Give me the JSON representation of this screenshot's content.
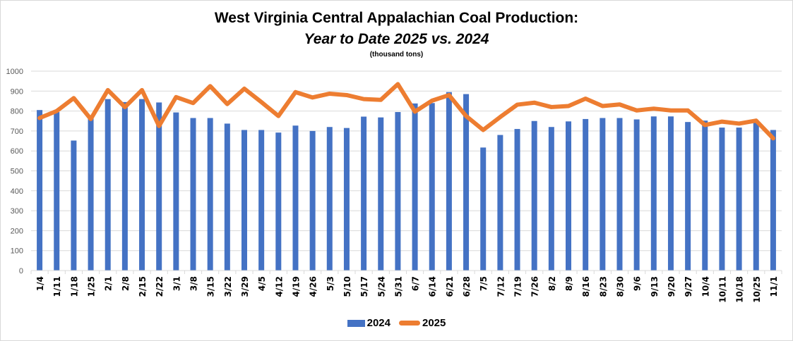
{
  "chart_data": {
    "type": "bar",
    "title": "West Virginia Central Appalachian Coal Production:",
    "subtitle": "Year to Date 2025 vs. 2024",
    "unit_note": "(thousand tons)",
    "xlabel": "",
    "ylabel": "",
    "ylim": [
      0,
      1000
    ],
    "yticks": [
      0,
      100,
      200,
      300,
      400,
      500,
      600,
      700,
      800,
      900,
      1000
    ],
    "grid": true,
    "legend_position": "bottom",
    "categories": [
      "1/4",
      "1/11",
      "1/18",
      "1/25",
      "2/1",
      "2/8",
      "2/15",
      "2/22",
      "3/1",
      "3/8",
      "3/15",
      "3/22",
      "3/29",
      "4/5",
      "4/12",
      "4/19",
      "4/26",
      "5/3",
      "5/10",
      "5/17",
      "5/24",
      "5/31",
      "6/7",
      "6/14",
      "6/21",
      "6/28",
      "7/5",
      "7/12",
      "7/19",
      "7/26",
      "8/2",
      "8/9",
      "8/16",
      "8/23",
      "8/30",
      "9/6",
      "9/13",
      "9/20",
      "9/27",
      "10/4",
      "10/11",
      "10/18",
      "10/25",
      "11/1"
    ],
    "series": [
      {
        "name": "2024",
        "type": "bar",
        "color": "#4472c4",
        "values": [
          805,
          795,
          652,
          765,
          860,
          845,
          860,
          843,
          793,
          765,
          765,
          737,
          705,
          705,
          692,
          727,
          700,
          720,
          715,
          772,
          768,
          795,
          838,
          840,
          895,
          885,
          617,
          680,
          710,
          750,
          720,
          748,
          760,
          765,
          765,
          758,
          773,
          773,
          745,
          752,
          717,
          717,
          742,
          705
        ]
      },
      {
        "name": "2025",
        "type": "line",
        "color": "#ed7d31",
        "values": [
          765,
          800,
          865,
          760,
          905,
          820,
          905,
          725,
          870,
          840,
          925,
          835,
          912,
          845,
          775,
          895,
          868,
          887,
          880,
          860,
          856,
          935,
          797,
          852,
          880,
          775,
          705,
          770,
          832,
          842,
          820,
          825,
          862,
          825,
          833,
          803,
          812,
          803,
          803,
          730,
          747,
          737,
          752,
          663
        ]
      }
    ]
  }
}
